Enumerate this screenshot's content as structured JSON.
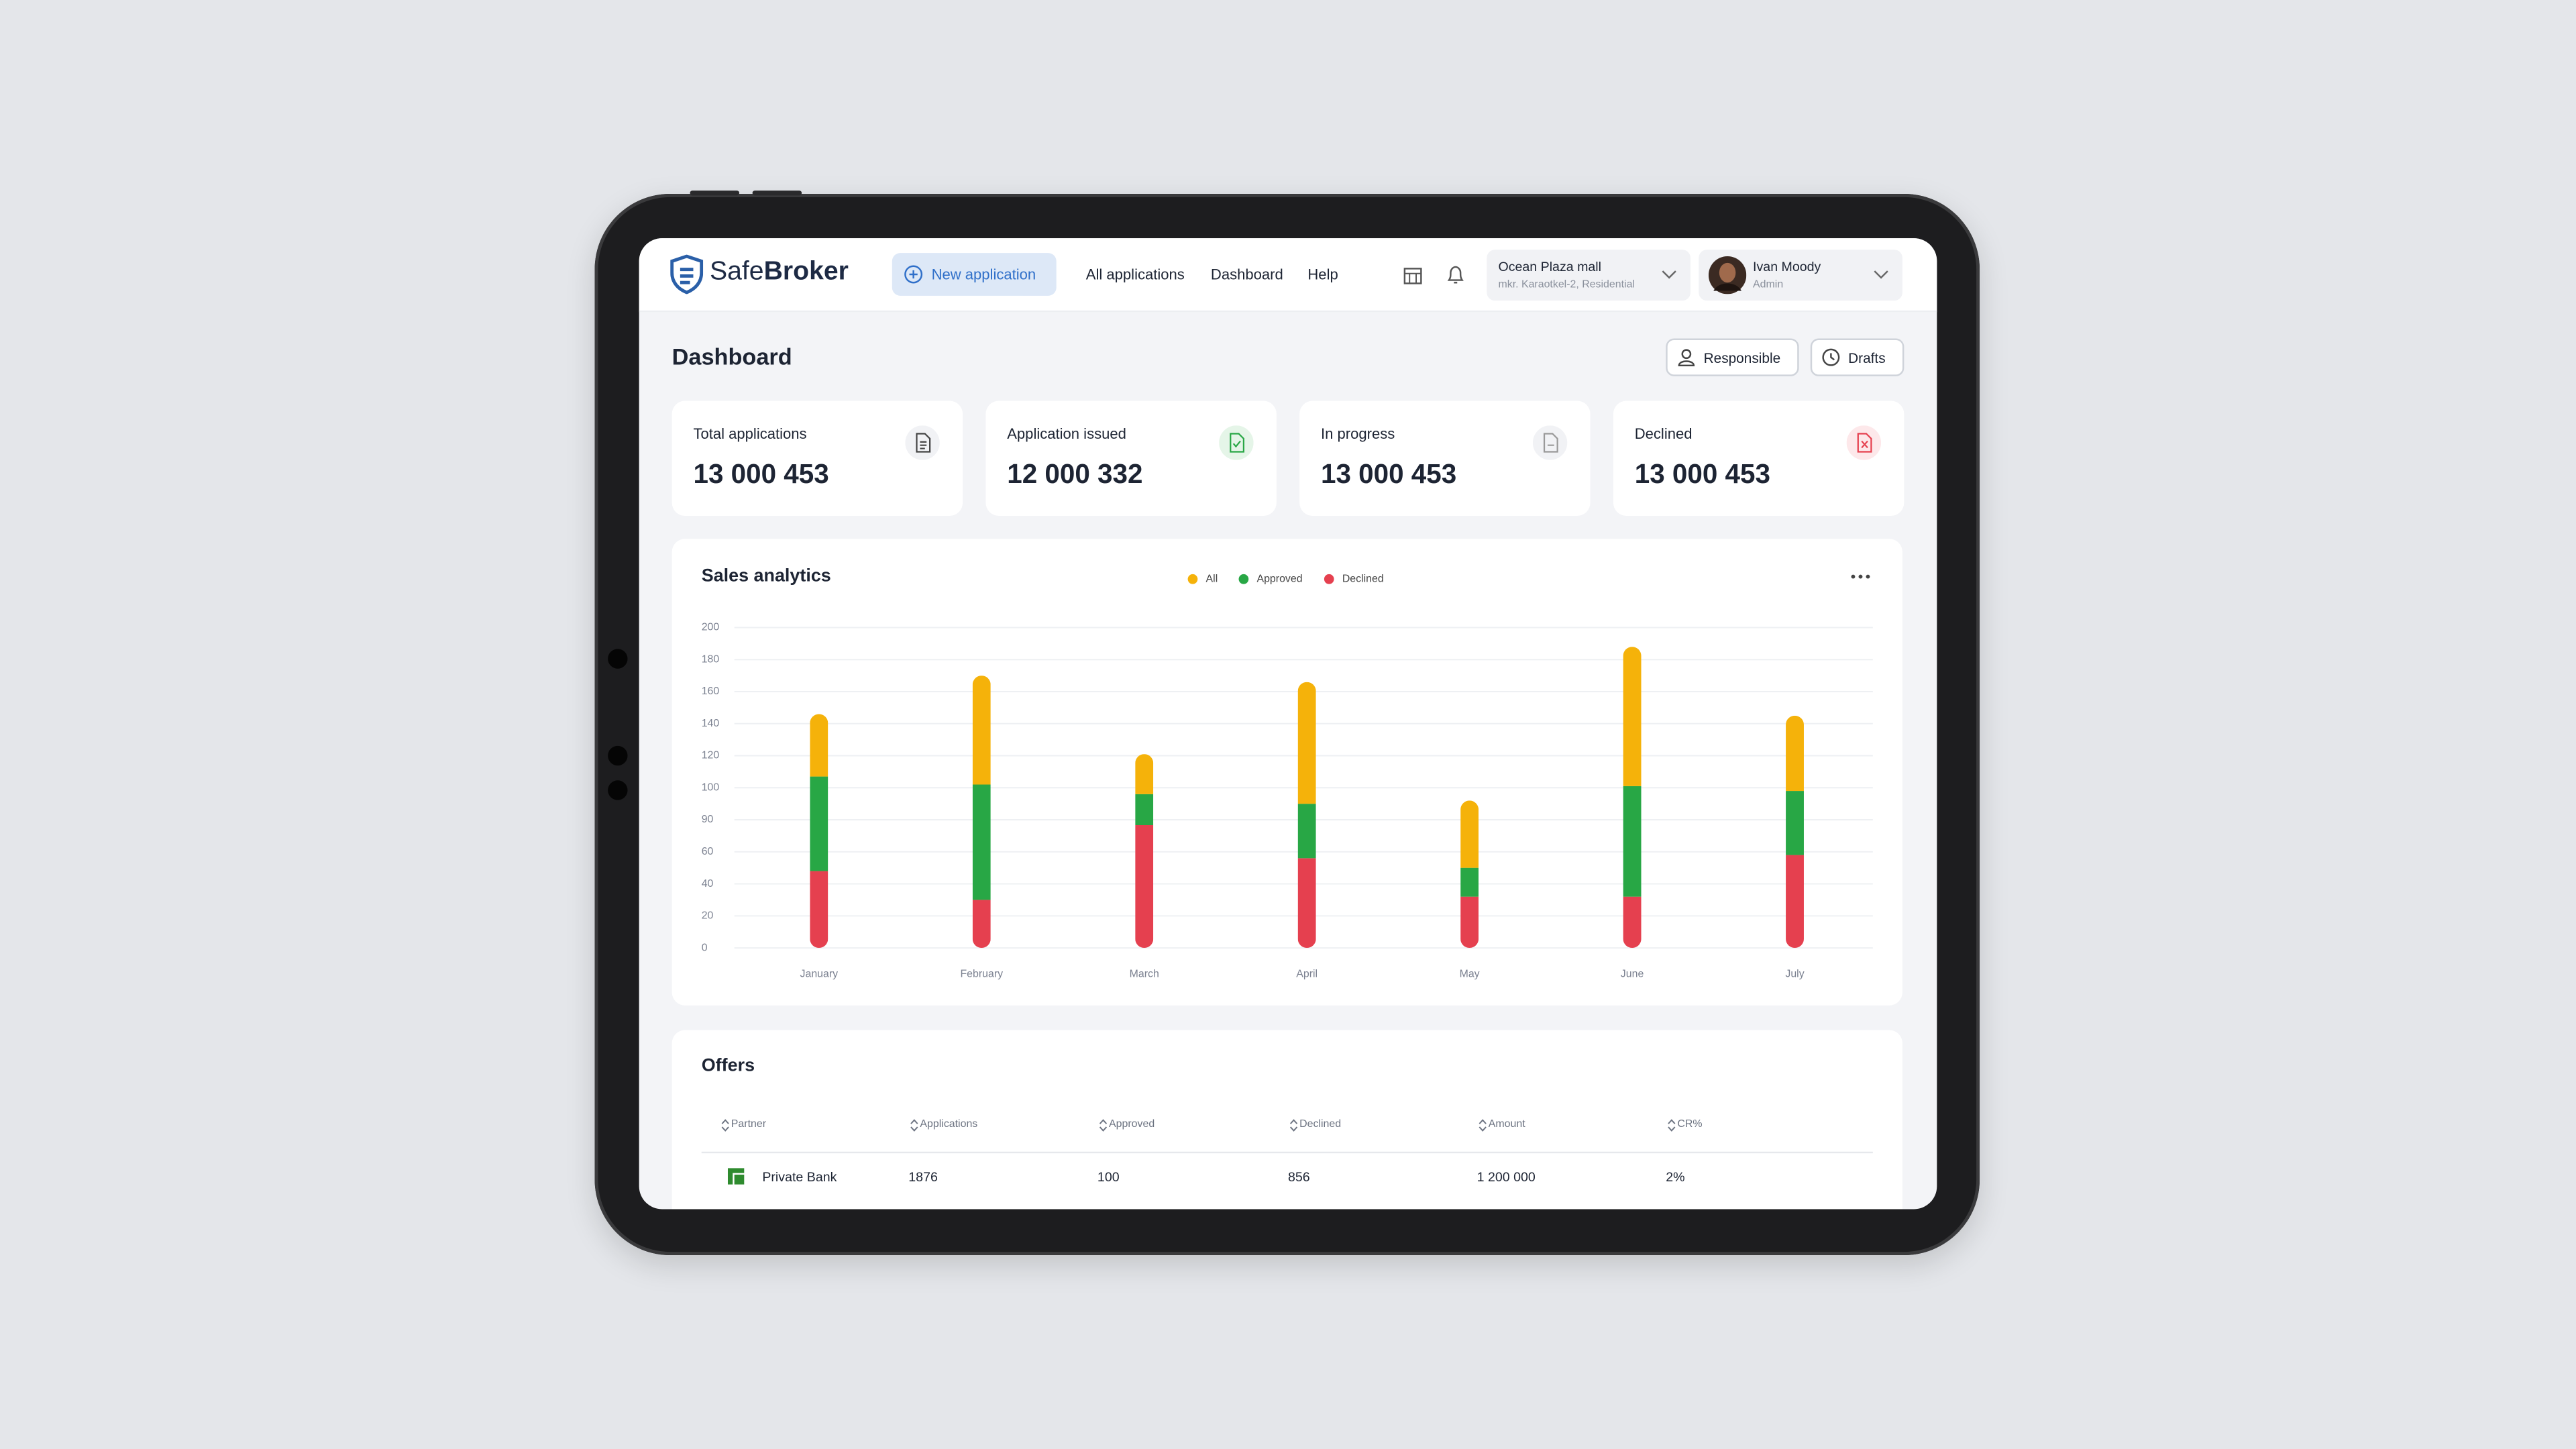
{
  "header": {
    "logo": {
      "light": "Safe",
      "bold": "Broker"
    },
    "new_application": "New application",
    "nav": [
      "All applications",
      "Dashboard",
      "Help"
    ],
    "location": {
      "name": "Ocean Plaza mall",
      "address": "mkr. Karaotkel-2, Residential"
    },
    "user": {
      "name": "Ivan Moody",
      "role": "Admin"
    }
  },
  "page": {
    "title": "Dashboard",
    "buttons": [
      "Responsible",
      "Drafts"
    ]
  },
  "cards": [
    {
      "label": "Total applications",
      "value": "13 000 453"
    },
    {
      "label": "Application issued",
      "value": "12 000 332"
    },
    {
      "label": "In progress",
      "value": "13 000 453"
    },
    {
      "label": "Declined",
      "value": "13 000 453"
    }
  ],
  "chart_data": {
    "type": "bar",
    "stacked": true,
    "title": "Sales analytics",
    "categories": [
      "January",
      "February",
      "March",
      "April",
      "May",
      "June",
      "July"
    ],
    "series": [
      {
        "name": "All",
        "color": "#f5b20a",
        "values": [
          39,
          68,
          23,
          71,
          46,
          87,
          46
        ]
      },
      {
        "name": "Approved",
        "color": "#28a745",
        "values": [
          59,
          72,
          13,
          39,
          18,
          69,
          41
        ]
      },
      {
        "name": "Declined",
        "color": "#e5404f",
        "values": [
          48,
          30,
          85,
          56,
          32,
          32,
          58
        ]
      }
    ],
    "ylim": [
      0,
      200
    ],
    "yticks": [
      0,
      20,
      40,
      60,
      90,
      100,
      120,
      140,
      160,
      180,
      200
    ],
    "grid": true,
    "legend": "top"
  },
  "offers": {
    "title": "Offers",
    "columns": [
      "Partner",
      "Applications",
      "Approved",
      "Declined",
      "Amount",
      "CR%"
    ],
    "rows": [
      [
        "Private Bank",
        "1876",
        "100",
        "856",
        "1 200 000",
        "2%"
      ]
    ]
  }
}
